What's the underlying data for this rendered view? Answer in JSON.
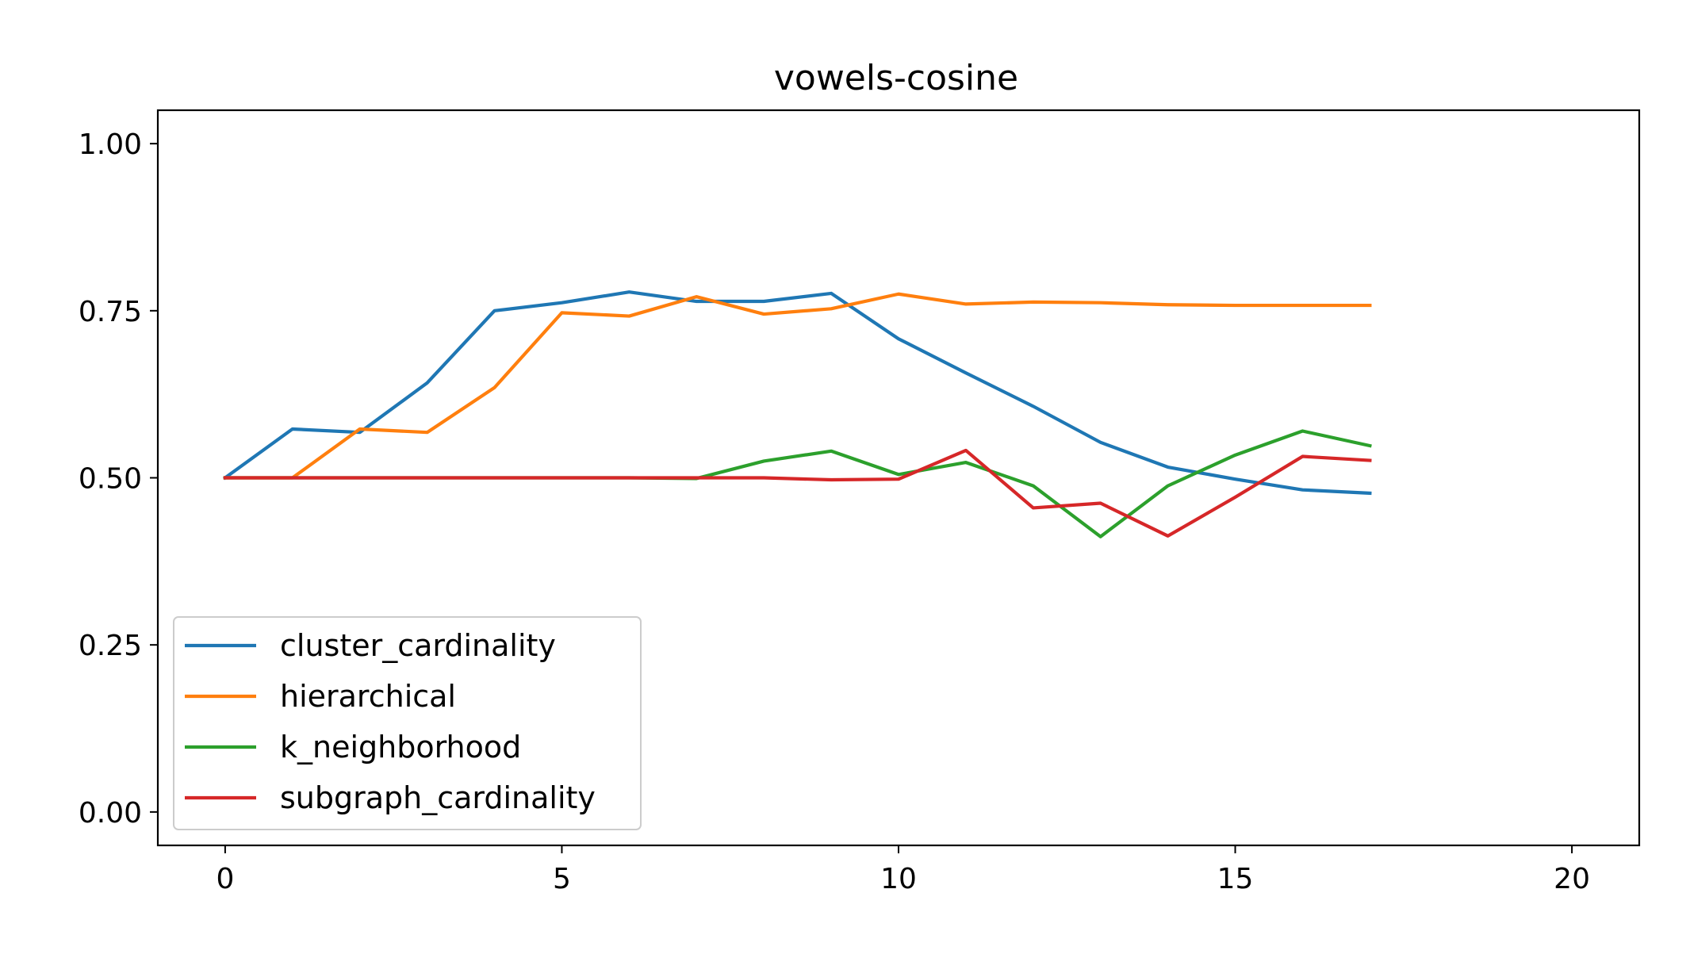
{
  "chart_data": {
    "type": "line",
    "title": "vowels-cosine",
    "xlabel": "",
    "ylabel": "",
    "xlim": [
      -1,
      21
    ],
    "ylim": [
      -0.05,
      1.05
    ],
    "xticks": [
      0,
      5,
      10,
      15,
      20
    ],
    "yticks": [
      0.0,
      0.25,
      0.5,
      0.75,
      1.0
    ],
    "xtick_labels": [
      "0",
      "5",
      "10",
      "15",
      "20"
    ],
    "ytick_labels": [
      "0.00",
      "0.25",
      "0.50",
      "0.75",
      "1.00"
    ],
    "x": [
      0,
      1,
      2,
      3,
      4,
      5,
      6,
      7,
      8,
      9,
      10,
      11,
      12,
      13,
      14,
      15,
      16,
      17
    ],
    "grid": false,
    "legend_position": "lower left",
    "series": [
      {
        "name": "cluster_cardinality",
        "color": "#1f77b4",
        "values": [
          0.5,
          0.573,
          0.568,
          0.642,
          0.75,
          0.762,
          0.778,
          0.764,
          0.764,
          0.776,
          0.708,
          0.657,
          0.607,
          0.553,
          0.516,
          0.498,
          0.482,
          0.477
        ]
      },
      {
        "name": "hierarchical",
        "color": "#ff7f0e",
        "values": [
          0.5,
          0.5,
          0.573,
          0.568,
          0.635,
          0.747,
          0.742,
          0.771,
          0.745,
          0.753,
          0.775,
          0.76,
          0.763,
          0.762,
          0.759,
          0.758,
          0.758,
          0.758
        ]
      },
      {
        "name": "k_neighborhood",
        "color": "#2ca02c",
        "values": [
          0.5,
          0.5,
          0.5,
          0.5,
          0.5,
          0.5,
          0.5,
          0.499,
          0.525,
          0.54,
          0.505,
          0.523,
          0.488,
          0.412,
          0.488,
          0.534,
          0.57,
          0.548
        ]
      },
      {
        "name": "subgraph_cardinality",
        "color": "#d62728",
        "values": [
          0.5,
          0.5,
          0.5,
          0.5,
          0.5,
          0.5,
          0.5,
          0.5,
          0.5,
          0.497,
          0.498,
          0.541,
          0.455,
          0.462,
          0.413,
          0.471,
          0.532,
          0.526
        ]
      }
    ]
  }
}
